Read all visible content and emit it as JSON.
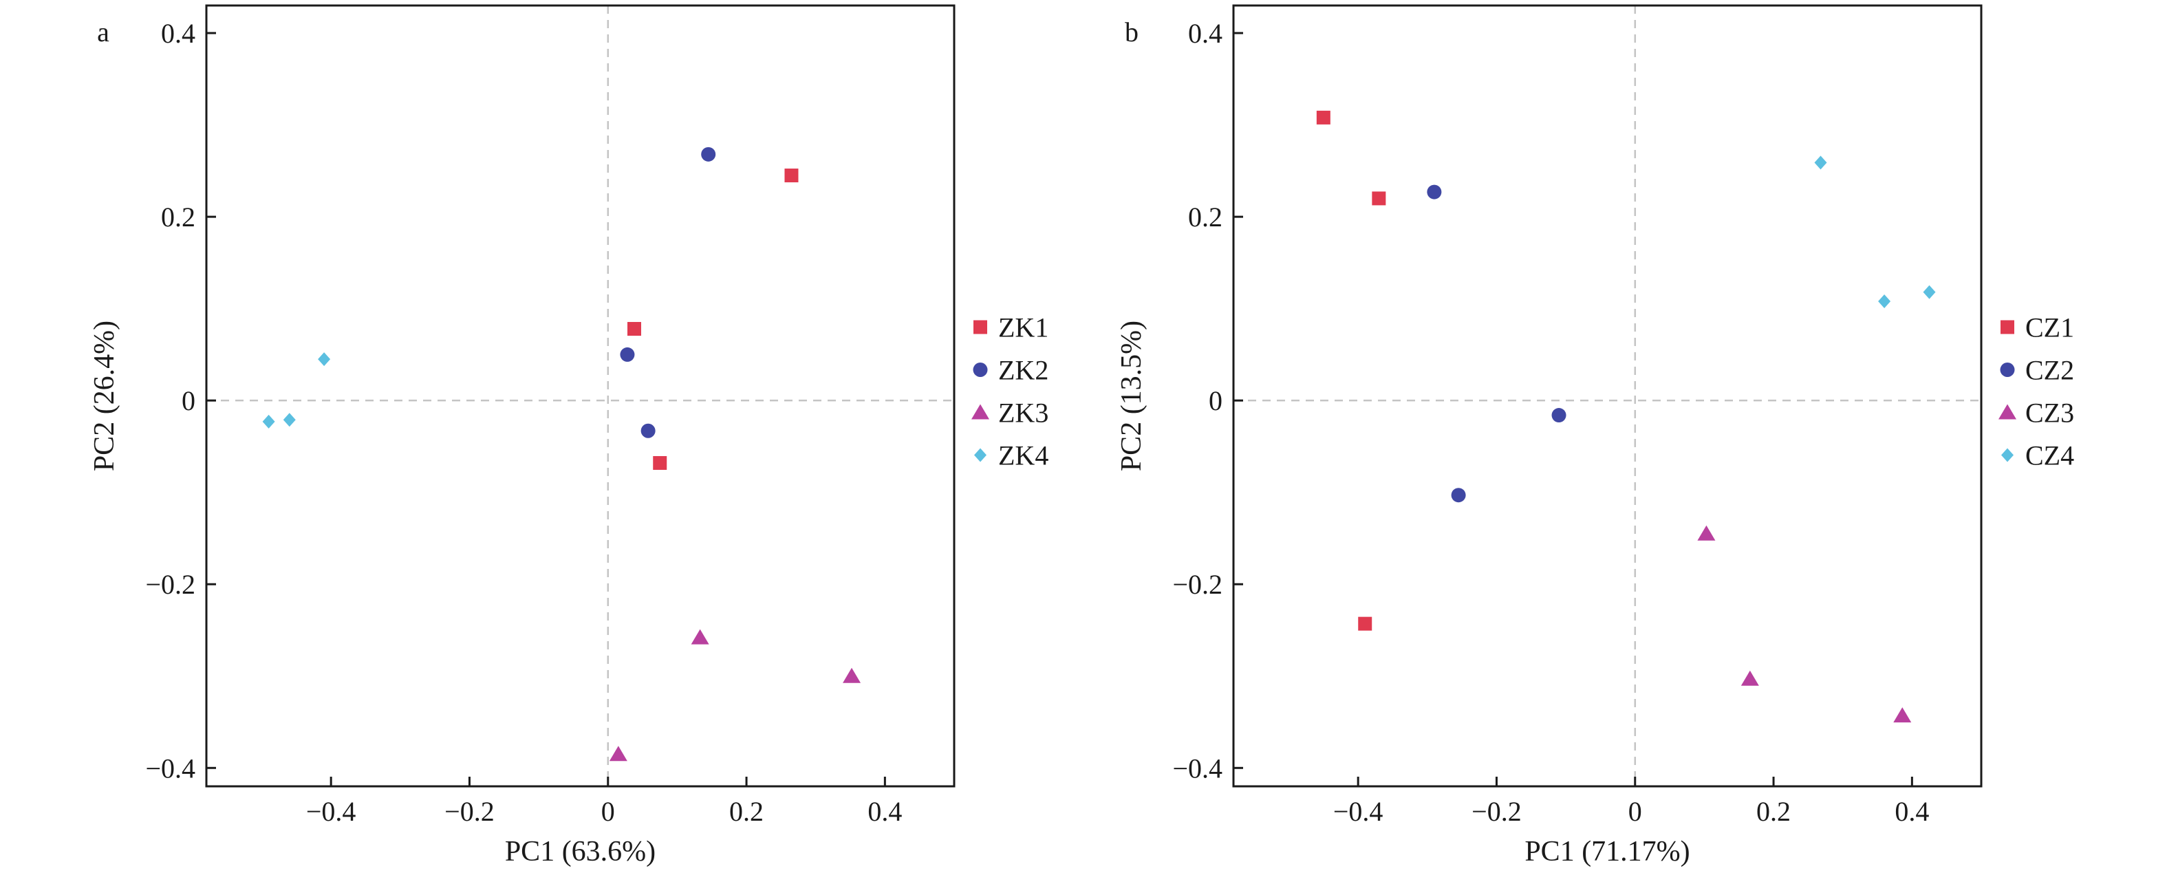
{
  "colors": {
    "series1": "#e03a4f",
    "series2": "#3f47a3",
    "series3": "#b8409e",
    "series4": "#5bbfe0",
    "axis": "#1a1a1a",
    "zero_line": "#c4c4c4"
  },
  "chart_data": [
    {
      "type": "scatter",
      "panel_label": "a",
      "xlabel": "PC1 (63.6%)",
      "ylabel": "PC2 (26.4%)",
      "xlim": [
        -0.58,
        0.5
      ],
      "ylim": [
        -0.42,
        0.43
      ],
      "xticks": [
        -0.4,
        -0.2,
        0,
        0.2,
        0.4
      ],
      "xtick_labels": [
        "−0.4",
        "−0.2",
        "0",
        "0.2",
        "0.4"
      ],
      "yticks": [
        -0.4,
        -0.2,
        0,
        0.2,
        0.4
      ],
      "ytick_labels": [
        "−0.4",
        "−0.2",
        "0",
        "0.2",
        "0.4"
      ],
      "zero_lines": true,
      "grid": false,
      "legend_position": "right",
      "series": [
        {
          "name": "ZK1",
          "marker": "square",
          "points": [
            [
              0.265,
              0.245
            ],
            [
              0.038,
              0.078
            ],
            [
              0.075,
              -0.068
            ]
          ]
        },
        {
          "name": "ZK2",
          "marker": "circle",
          "points": [
            [
              0.145,
              0.268
            ],
            [
              0.028,
              0.05
            ],
            [
              0.058,
              -0.033
            ]
          ]
        },
        {
          "name": "ZK3",
          "marker": "triangle",
          "points": [
            [
              0.133,
              -0.258
            ],
            [
              0.352,
              -0.3
            ],
            [
              0.015,
              -0.385
            ]
          ]
        },
        {
          "name": "ZK4",
          "marker": "diamond",
          "points": [
            [
              -0.41,
              0.045
            ],
            [
              -0.49,
              -0.023
            ],
            [
              -0.46,
              -0.021
            ]
          ]
        }
      ]
    },
    {
      "type": "scatter",
      "panel_label": "b",
      "xlabel": "PC1 (71.17%)",
      "ylabel": "PC2 (13.5%)",
      "xlim": [
        -0.58,
        0.5
      ],
      "ylim": [
        -0.42,
        0.43
      ],
      "xticks": [
        -0.4,
        -0.2,
        0,
        0.2,
        0.4
      ],
      "xtick_labels": [
        "−0.4",
        "−0.2",
        "0",
        "0.2",
        "0.4"
      ],
      "yticks": [
        -0.4,
        -0.2,
        0,
        0.2,
        0.4
      ],
      "ytick_labels": [
        "−0.4",
        "−0.2",
        "0",
        "0.2",
        "0.4"
      ],
      "zero_lines": true,
      "grid": false,
      "legend_position": "right",
      "series": [
        {
          "name": "CZ1",
          "marker": "square",
          "points": [
            [
              -0.45,
              0.308
            ],
            [
              -0.37,
              0.22
            ],
            [
              -0.39,
              -0.243
            ]
          ]
        },
        {
          "name": "CZ2",
          "marker": "circle",
          "points": [
            [
              -0.29,
              0.227
            ],
            [
              -0.11,
              -0.016
            ],
            [
              -0.255,
              -0.103
            ]
          ]
        },
        {
          "name": "CZ3",
          "marker": "triangle",
          "points": [
            [
              0.103,
              -0.145
            ],
            [
              0.166,
              -0.303
            ],
            [
              0.386,
              -0.343
            ]
          ]
        },
        {
          "name": "CZ4",
          "marker": "diamond",
          "points": [
            [
              0.268,
              0.259
            ],
            [
              0.36,
              0.108
            ],
            [
              0.425,
              0.118
            ]
          ]
        }
      ]
    }
  ]
}
